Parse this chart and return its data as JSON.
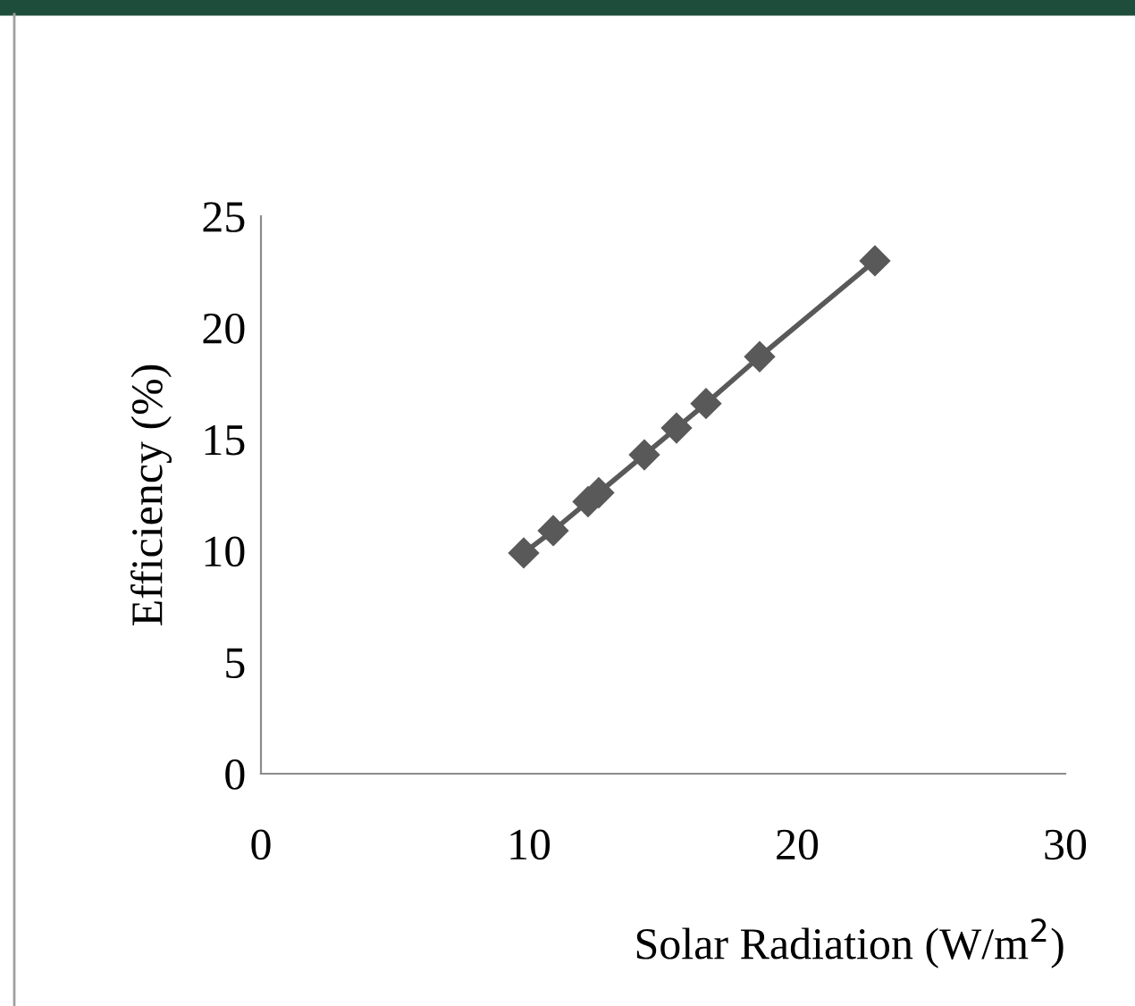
{
  "chart_data": {
    "type": "line",
    "xlabel": "Solar Radiation (W/m$^{2}$)",
    "ylabel": "Efficiency (%)",
    "x": [
      9.8,
      10.9,
      12.2,
      12.6,
      14.3,
      15.5,
      16.6,
      18.6,
      22.9
    ],
    "series": [
      {
        "color": "#595959",
        "values": [
          9.9,
          10.9,
          12.2,
          12.6,
          14.3,
          15.5,
          16.6,
          18.7,
          23.0
        ]
      }
    ],
    "marker": "diamond",
    "line_style": "solid",
    "grid": false,
    "legend": false,
    "xlim": [
      0,
      30
    ],
    "xticks": [
      0,
      10,
      20,
      30
    ],
    "ylim": [
      0,
      25
    ],
    "yticks": [
      0,
      5,
      10,
      15,
      20,
      25
    ]
  }
}
